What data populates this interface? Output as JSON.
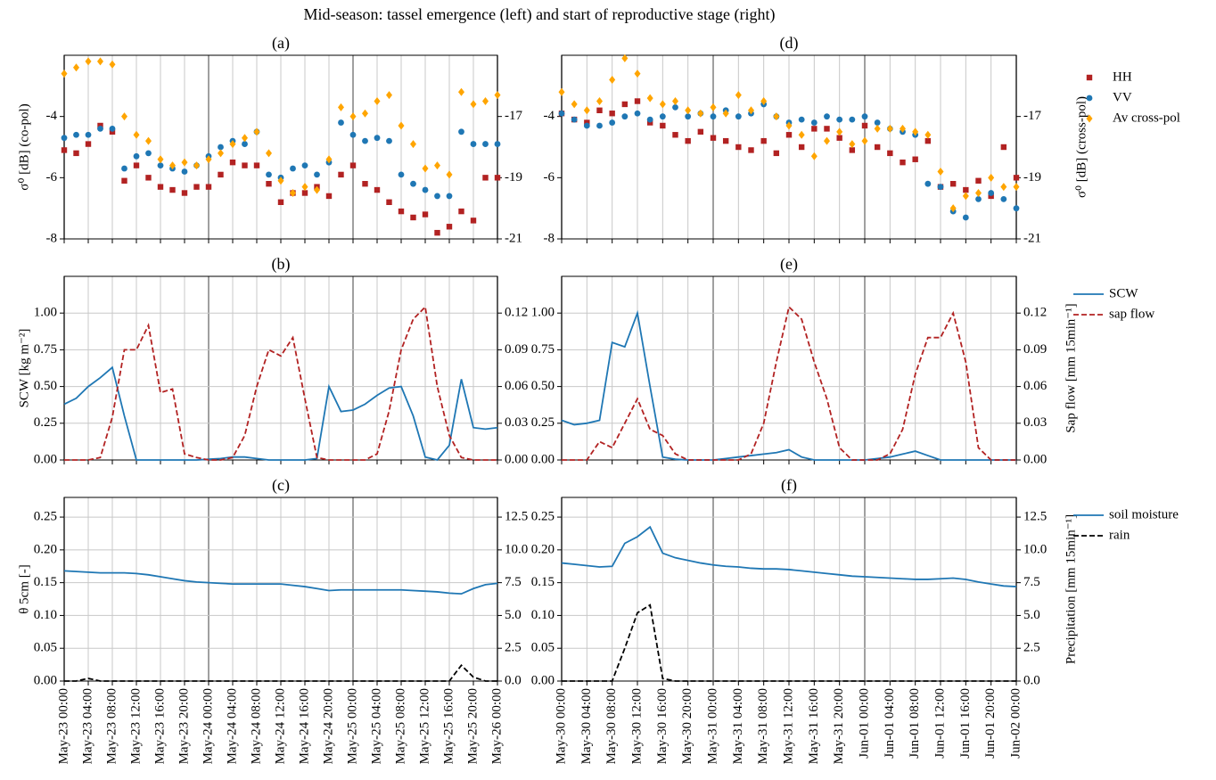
{
  "title": "Mid-season: tassel emergence (left) and start of reproductive stage (right)",
  "chart_data": [
    {
      "type": "scatter",
      "title": "(a)",
      "ylabel": "σ⁰ [dB] (co-pol)",
      "ylim": [
        -8,
        -2
      ],
      "yticks": [
        -8,
        -6,
        -4
      ],
      "y2lim": [
        -21,
        -15
      ],
      "y2ticks": [
        -21,
        -19,
        -17
      ],
      "grid": "x",
      "series": [
        {
          "color": "#b22222",
          "marker": "square",
          "values": [
            -5.1,
            -5.2,
            -4.9,
            -4.3,
            -4.5,
            -6.1,
            -5.6,
            -6.0,
            -6.3,
            -6.4,
            -6.5,
            -6.3,
            -6.3,
            -5.9,
            -5.5,
            -5.6,
            -5.6,
            -6.2,
            -6.8,
            -6.5,
            -6.5,
            -6.3,
            -6.6,
            -5.9,
            -5.6,
            -6.2,
            -6.4,
            -6.8,
            -7.1,
            -7.3,
            -7.2,
            -7.8,
            -7.6,
            -7.1,
            -7.4,
            -6.0,
            -6.0
          ]
        },
        {
          "color": "#1f77b4",
          "marker": "circle",
          "values": [
            -4.7,
            -4.6,
            -4.6,
            -4.4,
            -4.4,
            -5.7,
            -5.3,
            -5.2,
            -5.6,
            -5.7,
            -5.8,
            -5.6,
            -5.3,
            -5.0,
            -4.8,
            -4.9,
            -4.5,
            -5.9,
            -6.0,
            -5.7,
            -5.6,
            -5.9,
            -5.5,
            -4.2,
            -4.6,
            -4.8,
            -4.7,
            -4.8,
            -5.9,
            -6.2,
            -6.4,
            -6.6,
            -6.6,
            -4.5,
            -4.9,
            -4.9,
            -4.9
          ]
        },
        {
          "color": "#ffa500",
          "marker": "diamond",
          "axis": "y2",
          "values": [
            -15.6,
            -15.4,
            -15.2,
            -15.2,
            -15.3,
            -17.0,
            -17.6,
            -17.8,
            -18.4,
            -18.6,
            -18.5,
            -18.6,
            -18.4,
            -18.2,
            -17.9,
            -17.7,
            -17.5,
            -18.2,
            -19.1,
            -19.5,
            -19.3,
            -19.4,
            -18.4,
            -16.7,
            -17.0,
            -16.9,
            -16.5,
            -16.3,
            -17.3,
            -17.9,
            -18.7,
            -18.6,
            -18.9,
            -16.2,
            -16.6,
            -16.5,
            -16.3
          ]
        }
      ]
    },
    {
      "type": "line",
      "title": "(b)",
      "ylabel": "SCW [kg m⁻²]",
      "ylim": [
        0,
        1.25
      ],
      "yticks": [
        {
          "value": 0,
          "label": "0.00"
        },
        {
          "value": 0.25,
          "label": "0.25"
        },
        {
          "value": 0.5,
          "label": "0.50"
        },
        {
          "value": 0.75,
          "label": "0.75"
        },
        {
          "value": 1,
          "label": "1.00"
        }
      ],
      "y2lim": [
        0,
        0.15
      ],
      "y2ticks": [
        {
          "value": 0,
          "label": "0.00"
        },
        {
          "value": 0.03,
          "label": "0.03"
        },
        {
          "value": 0.06,
          "label": "0.06"
        },
        {
          "value": 0.09,
          "label": "0.09"
        },
        {
          "value": 0.12,
          "label": "0.12"
        }
      ],
      "grid": "both",
      "series": [
        {
          "color": "#1f77b4",
          "linestyle": "solid",
          "values": [
            0.38,
            0.42,
            0.5,
            0.56,
            0.63,
            0.3,
            0,
            0,
            0,
            0,
            0,
            0,
            0.005,
            0.01,
            0.02,
            0.02,
            0.01,
            0,
            0,
            0,
            0,
            0.01,
            0.5,
            0.33,
            0.34,
            0.38,
            0.44,
            0.49,
            0.5,
            0.3,
            0.02,
            0,
            0.1,
            0.55,
            0.22,
            0.21,
            0.22
          ]
        },
        {
          "color": "#b22222",
          "linestyle": "dashed",
          "axis": "y2",
          "values": [
            0,
            0,
            0,
            0.002,
            0.035,
            0.09,
            0.09,
            0.11,
            0.055,
            0.058,
            0.005,
            0.002,
            0,
            0,
            0.002,
            0.02,
            0.06,
            0.09,
            0.085,
            0.1,
            0.05,
            0.002,
            0,
            0,
            0,
            0,
            0.005,
            0.04,
            0.09,
            0.115,
            0.125,
            0.06,
            0.02,
            0.002,
            0,
            0,
            0
          ]
        }
      ]
    },
    {
      "type": "line",
      "title": "(c)",
      "ylabel": "θ 5cm [-]",
      "ylim": [
        0,
        0.28
      ],
      "yticks": [
        {
          "value": 0,
          "label": "0.00"
        },
        0.05,
        {
          "value": 0.1,
          "label": "0.10"
        },
        0.15,
        {
          "value": 0.2,
          "label": "0.20"
        },
        0.25
      ],
      "y2lim": [
        0,
        14
      ],
      "y2ticks": [
        {
          "value": 0,
          "label": "0.0"
        },
        2.5,
        {
          "value": 5,
          "label": "5.0"
        },
        7.5,
        {
          "value": 10,
          "label": "10.0"
        },
        12.5
      ],
      "grid": "both",
      "series": [
        {
          "color": "#1f77b4",
          "linestyle": "solid",
          "values": [
            0.168,
            0.167,
            0.166,
            0.165,
            0.165,
            0.165,
            0.164,
            0.162,
            0.159,
            0.156,
            0.153,
            0.151,
            0.15,
            0.149,
            0.148,
            0.148,
            0.148,
            0.148,
            0.148,
            0.146,
            0.144,
            0.141,
            0.138,
            0.139,
            0.139,
            0.139,
            0.139,
            0.139,
            0.139,
            0.138,
            0.137,
            0.136,
            0.134,
            0.133,
            0.141,
            0.147,
            0.149
          ]
        },
        {
          "color": "#000000",
          "linestyle": "dashed",
          "axis": "y2",
          "values": [
            0,
            0,
            0.2,
            0,
            0,
            0,
            0,
            0,
            0,
            0,
            0,
            0,
            0,
            0,
            0,
            0,
            0,
            0,
            0,
            0,
            0,
            0,
            0,
            0,
            0,
            0,
            0,
            0,
            0,
            0,
            0,
            0,
            0,
            1.2,
            0.3,
            0,
            0
          ]
        }
      ],
      "xlim": [
        "May-23 00:00",
        "May-26 00:00"
      ],
      "xticks": [
        "May-23 00:00",
        "May-23 04:00",
        "May-23 08:00",
        "May-23 12:00",
        "May-23 16:00",
        "May-23 20:00",
        "May-24 00:00",
        "May-24 04:00",
        "May-24 08:00",
        "May-24 12:00",
        "May-24 16:00",
        "May-24 20:00",
        "May-25 00:00",
        "May-25 04:00",
        "May-25 08:00",
        "May-25 12:00",
        "May-25 16:00",
        "May-25 20:00",
        "May-26 00:00"
      ],
      "x": [
        "May-23 00:00",
        "May-23 02:00",
        "May-23 04:00",
        "May-23 06:00",
        "May-23 08:00",
        "May-23 10:00",
        "May-23 12:00",
        "May-23 14:00",
        "May-23 16:00",
        "May-23 18:00",
        "May-23 20:00",
        "May-23 22:00",
        "May-24 00:00",
        "May-24 02:00",
        "May-24 04:00",
        "May-24 06:00",
        "May-24 08:00",
        "May-24 10:00",
        "May-24 12:00",
        "May-24 14:00",
        "May-24 16:00",
        "May-24 18:00",
        "May-24 20:00",
        "May-24 22:00",
        "May-25 00:00",
        "May-25 02:00",
        "May-25 04:00",
        "May-25 06:00",
        "May-25 08:00",
        "May-25 10:00",
        "May-25 12:00",
        "May-25 14:00",
        "May-25 16:00",
        "May-25 18:00",
        "May-25 20:00",
        "May-25 22:00",
        "May-26 00:00"
      ]
    },
    {
      "type": "scatter",
      "title": "(d)",
      "y2label": "σ⁰ [dB] (cross-pol)",
      "ylim": [
        -8,
        -2
      ],
      "yticks": [
        -8,
        -6,
        -4
      ],
      "y2lim": [
        -21,
        -15
      ],
      "y2ticks": [
        -21,
        -19,
        -17
      ],
      "grid": "x",
      "legend": "outside right",
      "series": [
        {
          "name": "HH",
          "color": "#b22222",
          "marker": "square",
          "values": [
            -3.9,
            -4.1,
            -4.2,
            -3.8,
            -3.9,
            -3.6,
            -3.5,
            -4.2,
            -4.3,
            -4.6,
            -4.8,
            -4.5,
            -4.7,
            -4.8,
            -5.0,
            -5.1,
            -4.8,
            -5.2,
            -4.6,
            -5.0,
            -4.4,
            -4.4,
            -4.7,
            -5.1,
            -4.3,
            -5.0,
            -5.2,
            -5.5,
            -5.4,
            -4.8,
            -6.3,
            -6.2,
            -6.4,
            -6.1,
            -6.6,
            -5.0,
            -6.0
          ]
        },
        {
          "name": "VV",
          "color": "#1f77b4",
          "marker": "circle",
          "values": [
            -3.9,
            -4.1,
            -4.3,
            -4.3,
            -4.2,
            -4.0,
            -3.9,
            -4.1,
            -4.0,
            -3.7,
            -4.0,
            -3.9,
            -4.0,
            -3.8,
            -4.0,
            -3.9,
            -3.6,
            -4.0,
            -4.2,
            -4.1,
            -4.2,
            -4.0,
            -4.1,
            -4.1,
            -4.0,
            -4.2,
            -4.4,
            -4.5,
            -4.6,
            -6.2,
            -6.3,
            -7.1,
            -7.3,
            -6.7,
            -6.5,
            -6.7,
            -7.0
          ]
        },
        {
          "name": "Av cross-pol",
          "color": "#ffa500",
          "marker": "diamond",
          "axis": "y2",
          "values": [
            -16.2,
            -16.6,
            -16.8,
            -16.5,
            -15.8,
            -15.1,
            -15.6,
            -16.4,
            -16.6,
            -16.5,
            -16.8,
            -16.9,
            -16.7,
            -16.9,
            -16.3,
            -16.8,
            -16.5,
            -17.0,
            -17.3,
            -17.6,
            -18.3,
            -17.8,
            -17.5,
            -17.9,
            -17.8,
            -17.4,
            -17.4,
            -17.4,
            -17.5,
            -17.6,
            -18.8,
            -20.0,
            -19.6,
            -19.5,
            -19.0,
            -19.3,
            -19.3
          ]
        }
      ]
    },
    {
      "type": "line",
      "title": "(e)",
      "y2label": "Sap flow [mm 15min⁻¹]",
      "ylim": [
        0,
        1.25
      ],
      "yticks": [
        {
          "value": 0,
          "label": "0.00"
        },
        {
          "value": 0.25,
          "label": "0.25"
        },
        {
          "value": 0.5,
          "label": "0.50"
        },
        {
          "value": 0.75,
          "label": "0.75"
        },
        {
          "value": 1,
          "label": "1.00"
        }
      ],
      "y2lim": [
        0,
        0.15
      ],
      "y2ticks": [
        {
          "value": 0,
          "label": "0.00"
        },
        {
          "value": 0.03,
          "label": "0.03"
        },
        {
          "value": 0.06,
          "label": "0.06"
        },
        {
          "value": 0.09,
          "label": "0.09"
        },
        {
          "value": 0.12,
          "label": "0.12"
        }
      ],
      "grid": "both",
      "legend": "outside right",
      "series": [
        {
          "name": "SCW",
          "color": "#1f77b4",
          "linestyle": "solid",
          "values": [
            0.27,
            0.24,
            0.25,
            0.27,
            0.8,
            0.77,
            1.0,
            0.5,
            0.02,
            0.005,
            0,
            0,
            0,
            0.01,
            0.02,
            0.03,
            0.04,
            0.05,
            0.07,
            0.02,
            0,
            0,
            0,
            0,
            0,
            0.01,
            0.02,
            0.04,
            0.06,
            0.03,
            0,
            0,
            0,
            0,
            0,
            0,
            0
          ]
        },
        {
          "name": "sap flow",
          "color": "#b22222",
          "linestyle": "dashed",
          "axis": "y2",
          "values": [
            0,
            0,
            0,
            0.015,
            0.01,
            0.03,
            0.05,
            0.025,
            0.02,
            0.005,
            0,
            0,
            0,
            0,
            0,
            0.005,
            0.03,
            0.08,
            0.125,
            0.115,
            0.08,
            0.05,
            0.01,
            0,
            0,
            0,
            0.005,
            0.025,
            0.07,
            0.1,
            0.1,
            0.12,
            0.08,
            0.01,
            0,
            0,
            0
          ]
        }
      ]
    },
    {
      "type": "line",
      "title": "(f)",
      "y2label": "Precipitation [mm 15min⁻¹]",
      "ylim": [
        0,
        0.28
      ],
      "yticks": [
        {
          "value": 0,
          "label": "0.00"
        },
        0.05,
        {
          "value": 0.1,
          "label": "0.10"
        },
        0.15,
        {
          "value": 0.2,
          "label": "0.20"
        },
        0.25
      ],
      "y2lim": [
        0,
        14
      ],
      "y2ticks": [
        {
          "value": 0,
          "label": "0.0"
        },
        2.5,
        {
          "value": 5,
          "label": "5.0"
        },
        7.5,
        {
          "value": 10,
          "label": "10.0"
        },
        12.5
      ],
      "grid": "both",
      "legend": "outside right",
      "series": [
        {
          "name": "soil moisture",
          "color": "#1f77b4",
          "linestyle": "solid",
          "values": [
            0.18,
            0.178,
            0.176,
            0.174,
            0.175,
            0.21,
            0.22,
            0.235,
            0.195,
            0.188,
            0.184,
            0.18,
            0.177,
            0.175,
            0.174,
            0.172,
            0.171,
            0.171,
            0.17,
            0.168,
            0.166,
            0.164,
            0.162,
            0.16,
            0.159,
            0.158,
            0.157,
            0.156,
            0.155,
            0.155,
            0.156,
            0.157,
            0.155,
            0.151,
            0.148,
            0.145,
            0.144
          ]
        },
        {
          "name": "rain",
          "color": "#000000",
          "linestyle": "dashed",
          "axis": "y2",
          "values": [
            0,
            0,
            0,
            0,
            0,
            2.5,
            5.2,
            5.8,
            0.2,
            0,
            0,
            0,
            0,
            0,
            0,
            0,
            0,
            0,
            0,
            0,
            0,
            0,
            0,
            0,
            0,
            0,
            0,
            0,
            0,
            0,
            0,
            0,
            0,
            0,
            0,
            0,
            0
          ]
        }
      ],
      "xlim": [
        "May-30 00:00",
        "Jun-02 00:00"
      ],
      "xticks": [
        "May-30 00:00",
        "May-30 04:00",
        "May-30 08:00",
        "May-30 12:00",
        "May-30 16:00",
        "May-30 20:00",
        "May-31 00:00",
        "May-31 04:00",
        "May-31 08:00",
        "May-31 12:00",
        "May-31 16:00",
        "May-31 20:00",
        "Jun-01 00:00",
        "Jun-01 04:00",
        "Jun-01 08:00",
        "Jun-01 12:00",
        "Jun-01 16:00",
        "Jun-01 20:00",
        "Jun-02 00:00"
      ],
      "x": [
        "May-30 00:00",
        "May-30 02:00",
        "May-30 04:00",
        "May-30 06:00",
        "May-30 08:00",
        "May-30 10:00",
        "May-30 12:00",
        "May-30 14:00",
        "May-30 16:00",
        "May-30 18:00",
        "May-30 20:00",
        "May-30 22:00",
        "May-31 00:00",
        "May-31 02:00",
        "May-31 04:00",
        "May-31 06:00",
        "May-31 08:00",
        "May-31 10:00",
        "May-31 12:00",
        "May-31 14:00",
        "May-31 16:00",
        "May-31 18:00",
        "May-31 20:00",
        "May-31 22:00",
        "Jun-01 00:00",
        "Jun-01 02:00",
        "Jun-01 04:00",
        "Jun-01 06:00",
        "Jun-01 08:00",
        "Jun-01 10:00",
        "Jun-01 12:00",
        "Jun-01 14:00",
        "Jun-01 16:00",
        "Jun-01 18:00",
        "Jun-01 20:00",
        "Jun-01 22:00",
        "Jun-02 00:00"
      ]
    }
  ]
}
